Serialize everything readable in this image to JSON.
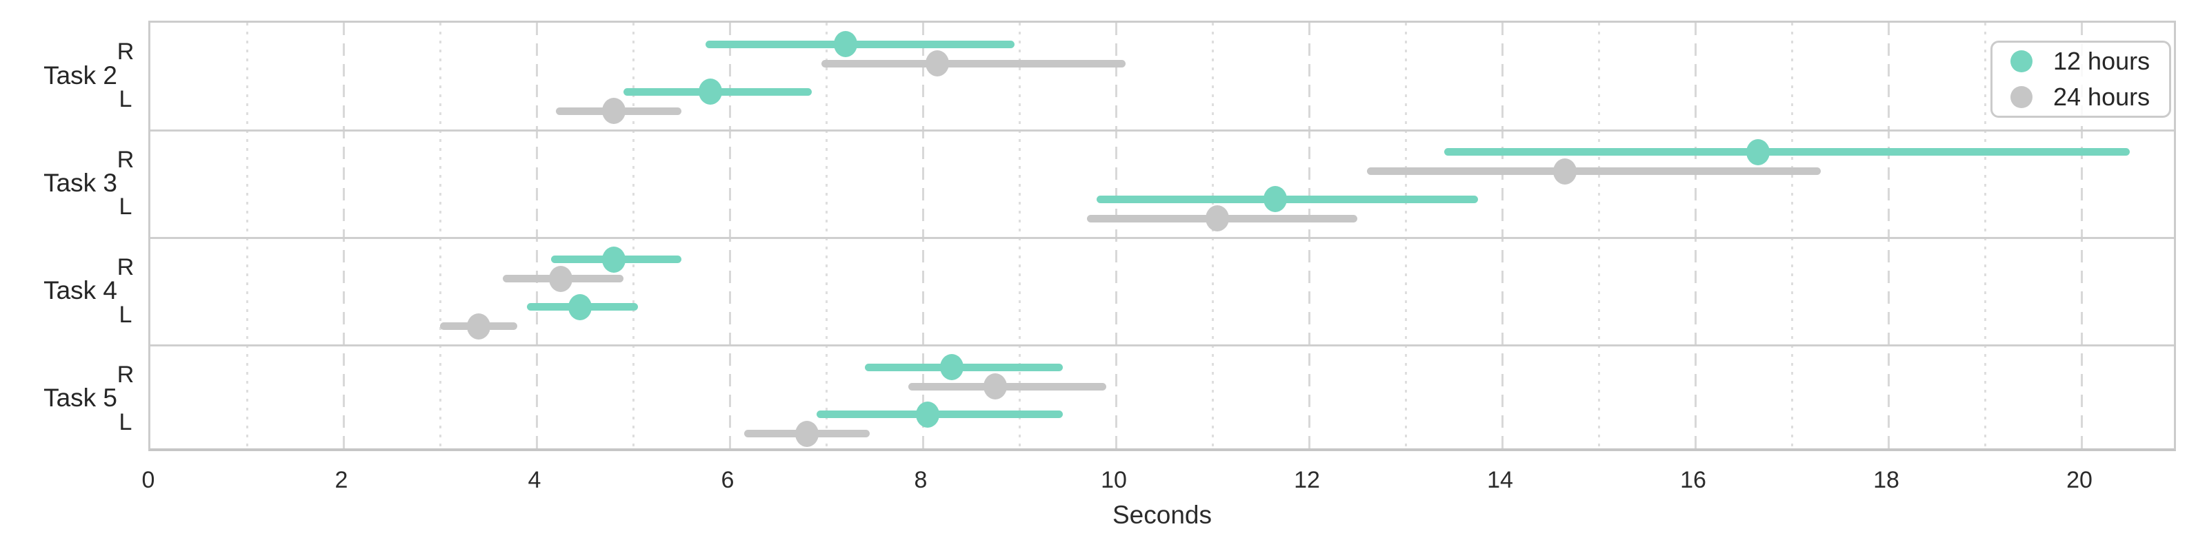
{
  "figure": {
    "background": "#ffffff",
    "text_color": "#262626"
  },
  "colors": {
    "series_12_hours": "#76d5bf",
    "series_24_hours": "#c6c6c6",
    "grid_dashed": "#d8d8d8",
    "grid_dotted": "#dedede",
    "spine": "#cccccc",
    "separator": "#cfcfcf"
  },
  "chart_data": {
    "type": "scatter",
    "subtype": "horizontal-point-plot-with-error-bars",
    "title": "",
    "xlabel": "Seconds",
    "ylabel": "",
    "xlim": [
      0,
      21
    ],
    "xticks": [
      0,
      2,
      4,
      6,
      8,
      10,
      12,
      14,
      16,
      18,
      20
    ],
    "grid": "vertical gridlines: dashed at even seconds, dotted at odd seconds",
    "legend_position": "top-right",
    "series": [
      {
        "name": "12 hours",
        "color": "#76d5bf"
      },
      {
        "name": "24 hours",
        "color": "#c6c6c6"
      }
    ],
    "tasks": [
      {
        "label": "Task 2",
        "sides": [
          {
            "label": "R",
            "points": [
              {
                "series": "12 hours",
                "mean": 7.2,
                "ci_low": 5.75,
                "ci_high": 8.95
              },
              {
                "series": "24 hours",
                "mean": 8.15,
                "ci_low": 6.95,
                "ci_high": 10.1
              }
            ]
          },
          {
            "label": "L",
            "points": [
              {
                "series": "12 hours",
                "mean": 5.8,
                "ci_low": 4.9,
                "ci_high": 6.85
              },
              {
                "series": "24 hours",
                "mean": 4.8,
                "ci_low": 4.2,
                "ci_high": 5.5
              }
            ]
          }
        ]
      },
      {
        "label": "Task 3",
        "sides": [
          {
            "label": "R",
            "points": [
              {
                "series": "12 hours",
                "mean": 16.65,
                "ci_low": 13.4,
                "ci_high": 20.5
              },
              {
                "series": "24 hours",
                "mean": 14.65,
                "ci_low": 12.6,
                "ci_high": 17.3
              }
            ]
          },
          {
            "label": "L",
            "points": [
              {
                "series": "12 hours",
                "mean": 11.65,
                "ci_low": 9.8,
                "ci_high": 13.75
              },
              {
                "series": "24 hours",
                "mean": 11.05,
                "ci_low": 9.7,
                "ci_high": 12.5
              }
            ]
          }
        ]
      },
      {
        "label": "Task 4",
        "sides": [
          {
            "label": "R",
            "points": [
              {
                "series": "12 hours",
                "mean": 4.8,
                "ci_low": 4.15,
                "ci_high": 5.5
              },
              {
                "series": "24 hours",
                "mean": 4.25,
                "ci_low": 3.65,
                "ci_high": 4.9
              }
            ]
          },
          {
            "label": "L",
            "points": [
              {
                "series": "12 hours",
                "mean": 4.45,
                "ci_low": 3.9,
                "ci_high": 5.05
              },
              {
                "series": "24 hours",
                "mean": 3.4,
                "ci_low": 3.0,
                "ci_high": 3.8
              }
            ]
          }
        ]
      },
      {
        "label": "Task 5",
        "sides": [
          {
            "label": "R",
            "points": [
              {
                "series": "12 hours",
                "mean": 8.3,
                "ci_low": 7.4,
                "ci_high": 9.45
              },
              {
                "series": "24 hours",
                "mean": 8.75,
                "ci_low": 7.85,
                "ci_high": 9.9
              }
            ]
          },
          {
            "label": "L",
            "points": [
              {
                "series": "12 hours",
                "mean": 8.05,
                "ci_low": 6.9,
                "ci_high": 9.45
              },
              {
                "series": "24 hours",
                "mean": 6.8,
                "ci_low": 6.15,
                "ci_high": 7.45
              }
            ]
          }
        ]
      }
    ]
  }
}
